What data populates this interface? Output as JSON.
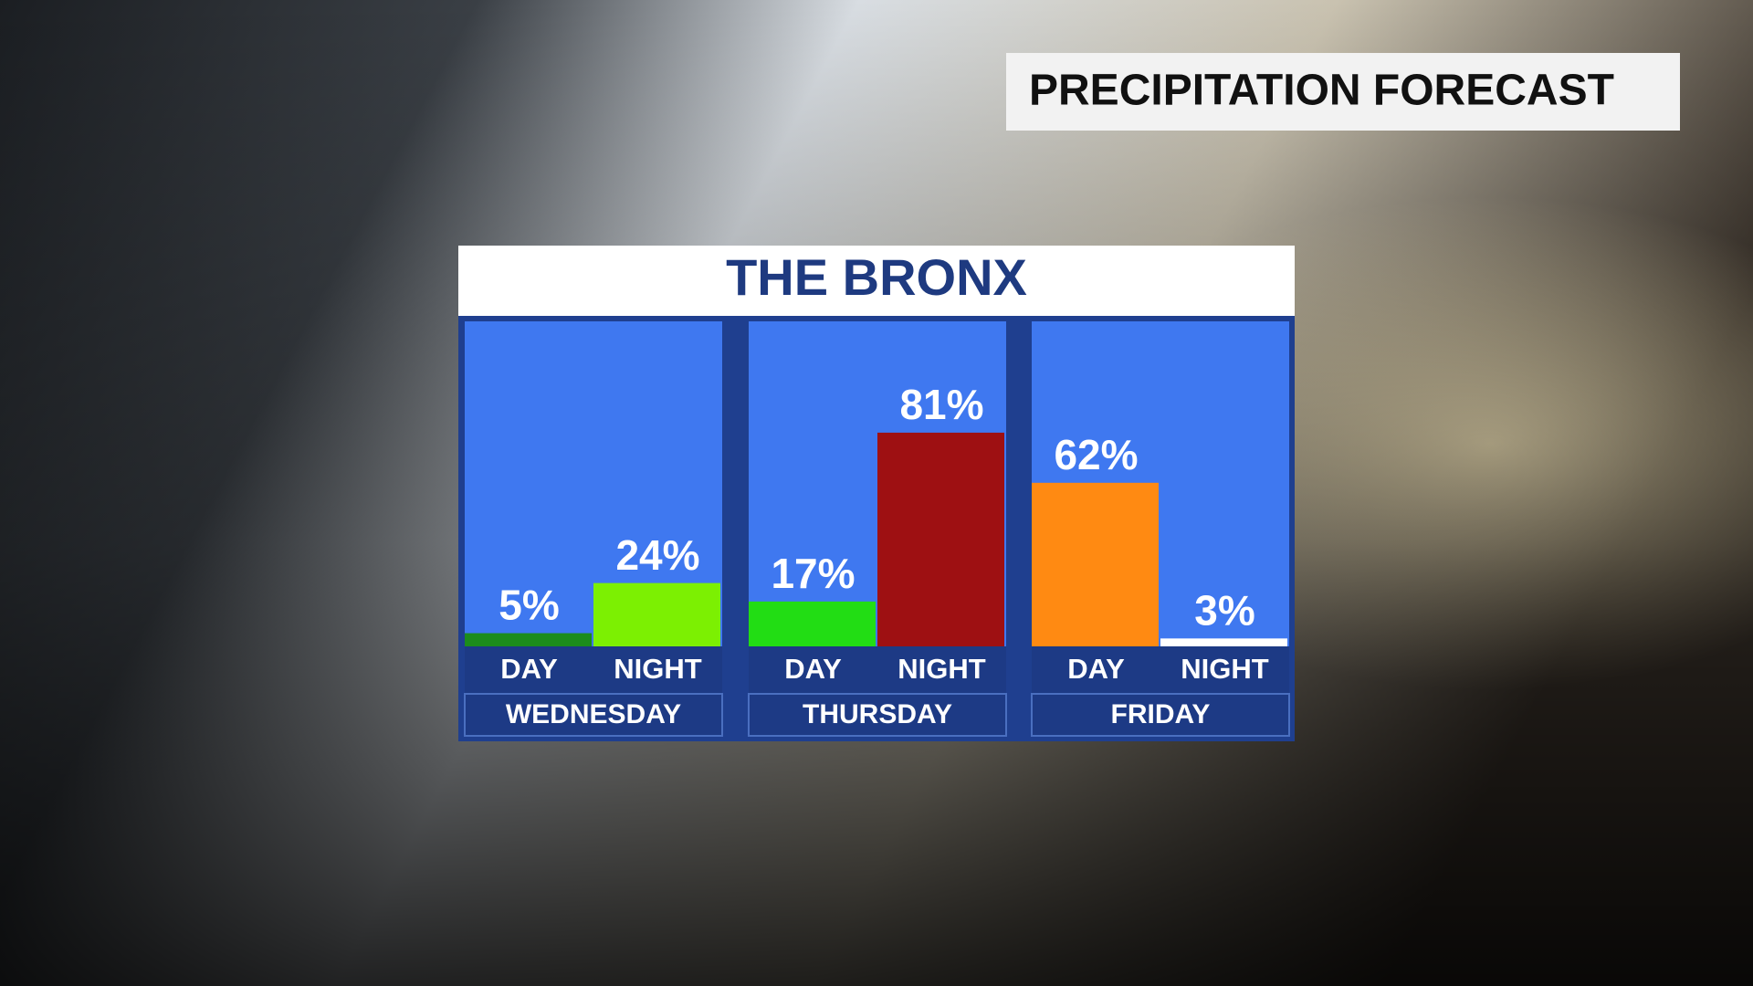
{
  "header": {
    "title": "PRECIPITATION FORECAST"
  },
  "chart_data": {
    "type": "bar",
    "title": "THE BRONX",
    "categories": [
      "WEDNESDAY",
      "THURSDAY",
      "FRIDAY"
    ],
    "series": [
      {
        "name": "DAY",
        "values": [
          5,
          17,
          62
        ],
        "value_labels": [
          "5%",
          "17%",
          "62%"
        ],
        "colors": [
          "#1c8c1c",
          "#22dd14",
          "#ff8a12"
        ]
      },
      {
        "name": "NIGHT",
        "values": [
          24,
          81,
          3
        ],
        "value_labels": [
          "24%",
          "81%",
          "3%"
        ],
        "colors": [
          "#7cf002",
          "#9e1012",
          "#ffffff"
        ]
      }
    ]
  }
}
